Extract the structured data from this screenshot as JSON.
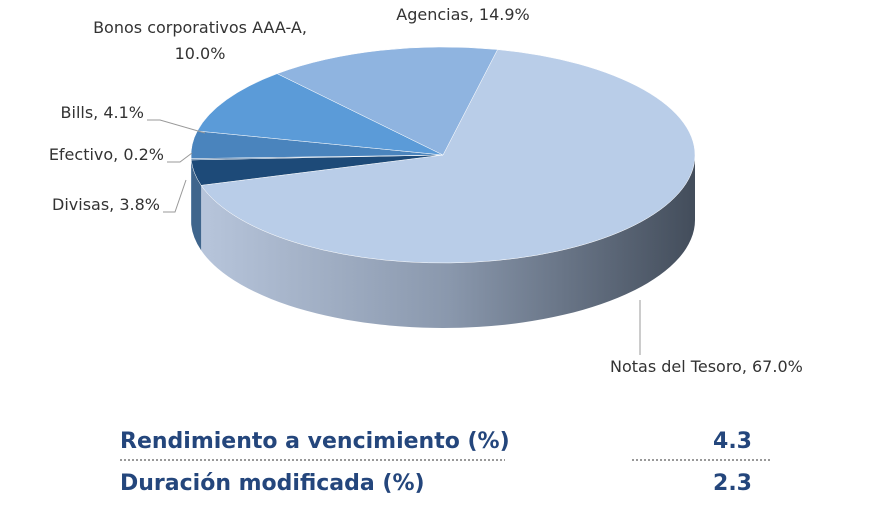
{
  "chart_data": {
    "type": "pie3d",
    "categories": [
      "Notas del Tesoro",
      "Divisas",
      "Efectivo",
      "Bills",
      "Bonos corporativos AAA-A",
      "Agencias"
    ],
    "values": [
      67.0,
      3.8,
      0.2,
      4.1,
      10.0,
      14.9
    ],
    "value_labels": [
      "Notas del Tesoro, 67.0%",
      "Divisas, 3.8%",
      "Efectivo, 0.2%",
      "Bills, 4.1%",
      "Bonos corporativos AAA-A, 10.0%",
      "Agencias, 14.9%"
    ],
    "colors": [
      "#b9cde8",
      "#1d4a78",
      "#2f5f93",
      "#4a84bd",
      "#5b9bd8",
      "#8fb4e0"
    ]
  },
  "table": {
    "rows": [
      [
        "Rendimiento a vencimiento (%)",
        "4.3"
      ],
      [
        "Duración modificada (%)",
        "2.3"
      ]
    ]
  }
}
